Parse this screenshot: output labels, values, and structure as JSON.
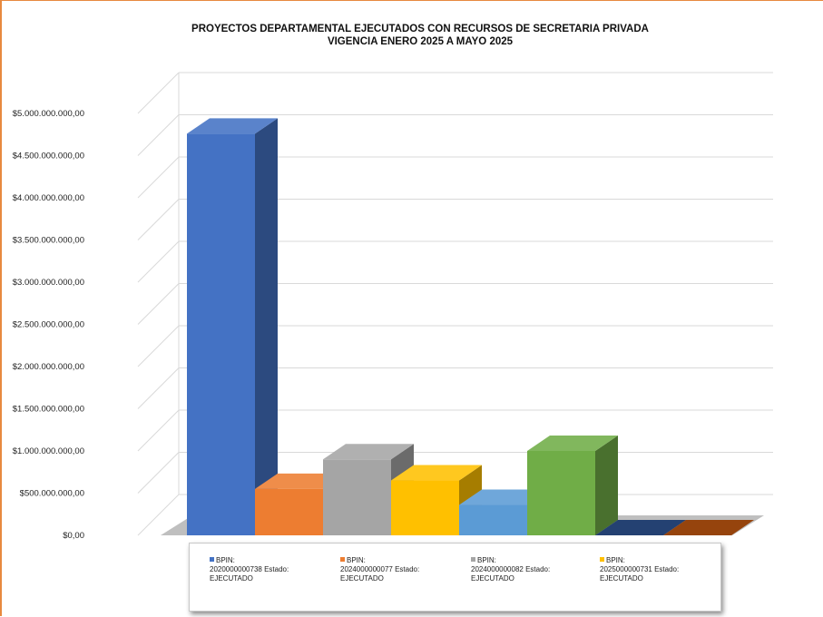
{
  "chart_data": {
    "type": "bar",
    "title": [
      "PROYECTOS DEPARTAMENTAL EJECUTADOS CON RECURSOS DE SECRETARIA PRIVADA",
      "VIGENCIA ENERO 2025 A MAYO 2025"
    ],
    "y_ticks": [
      "$0,00",
      "$500.000.000,00",
      "$1.000.000.000,00",
      "$1.500.000.000,00",
      "$2.000.000.000,00",
      "$2.500.000.000,00",
      "$3.000.000.000,00",
      "$3.500.000.000,00",
      "$4.000.000.000,00",
      "$4.500.000.000,00",
      "$5.000.000.000,00"
    ],
    "ylim": [
      0,
      5000000000
    ],
    "grid": true,
    "legend_position": "bottom",
    "series": [
      {
        "name": "BPIN: 2020000000738 Estado: EJECUTADO",
        "value": 4760000000,
        "color": "#4472c4"
      },
      {
        "name": "BPIN: 2024000000077 Estado: EJECUTADO",
        "value": 550000000,
        "color": "#ed7d31"
      },
      {
        "name": "BPIN: 2024000000082 Estado: EJECUTADO",
        "value": 900000000,
        "color": "#a5a5a5"
      },
      {
        "name": "BPIN: 2025000000731 Estado: EJECUTADO",
        "value": 650000000,
        "color": "#ffc000"
      },
      {
        "name": "",
        "value": 360000000,
        "color": "#5b9bd5"
      },
      {
        "name": "",
        "value": 1000000000,
        "color": "#70ad47"
      },
      {
        "name": "",
        "value": 0,
        "color": "#264478"
      },
      {
        "name": "",
        "value": 0,
        "color": "#9e480e"
      }
    ]
  },
  "legend": [
    {
      "line1": "BPIN:",
      "line2": "2020000000738 Estado:",
      "line3": "EJECUTADO",
      "color": "#4472c4"
    },
    {
      "line1": "BPIN:",
      "line2": "2024000000077 Estado:",
      "line3": "EJECUTADO",
      "color": "#ed7d31"
    },
    {
      "line1": "BPIN:",
      "line2": "2024000000082 Estado:",
      "line3": "EJECUTADO",
      "color": "#a5a5a5"
    },
    {
      "line1": "BPIN:",
      "line2": "2025000000731 Estado:",
      "line3": "EJECUTADO",
      "color": "#ffc000"
    }
  ]
}
